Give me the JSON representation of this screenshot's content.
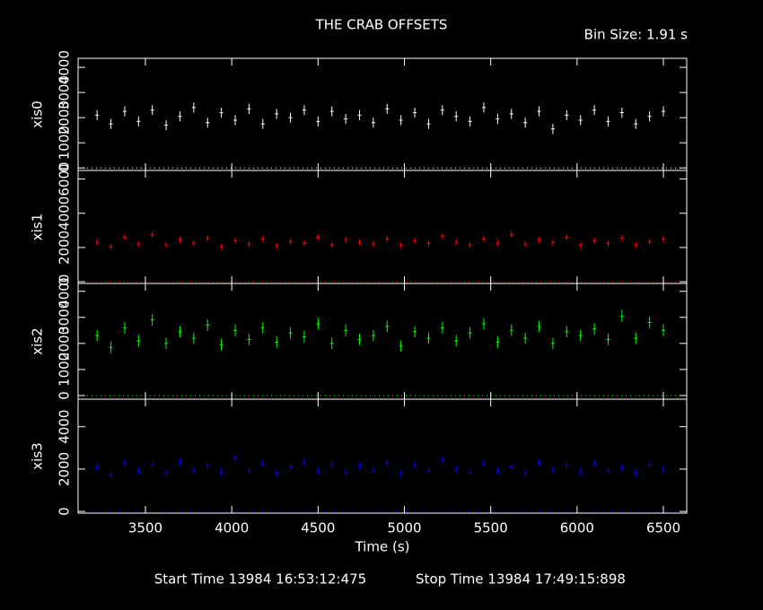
{
  "title": "THE CRAB OFFSETS",
  "bin_size": "Bin Size: 1.91 s",
  "start_time": "Start Time 13984 16:53:12:475",
  "stop_time": "Stop Time 13984 17:49:15:898",
  "chart_data": [
    {
      "type": "errorbar",
      "ylabel": "xis0",
      "color": "#ffffff",
      "xlim": [
        3110,
        6635
      ],
      "ylim": [
        -100,
        4360
      ],
      "yticks": [
        0,
        1000,
        2000,
        3000,
        4000
      ],
      "yerr": 200,
      "x": [
        3220,
        3300,
        3380,
        3460,
        3540,
        3620,
        3700,
        3780,
        3860,
        3940,
        4020,
        4100,
        4180,
        4260,
        4340,
        4420,
        4500,
        4580,
        4660,
        4740,
        4820,
        4900,
        4980,
        5060,
        5140,
        5220,
        5300,
        5380,
        5460,
        5540,
        5620,
        5700,
        5780,
        5860,
        5940,
        6020,
        6100,
        6180,
        6260,
        6340,
        6420,
        6500
      ],
      "values": [
        2100,
        1750,
        2250,
        1850,
        2300,
        1700,
        2050,
        2400,
        1800,
        2200,
        1900,
        2350,
        1750,
        2150,
        2000,
        2300,
        1850,
        2250,
        1950,
        2100,
        1800,
        2350,
        1900,
        2200,
        1750,
        2300,
        2050,
        1850,
        2400,
        1950,
        2150,
        1800,
        2250,
        1550,
        2100,
        1900,
        2300,
        1850,
        2200,
        1750,
        2050,
        2250
      ]
    },
    {
      "type": "errorbar",
      "ylabel": "xis1",
      "color": "#ff0000",
      "xlim": [
        3110,
        6635
      ],
      "ylim": [
        -100,
        6500
      ],
      "yticks": [
        0,
        2000,
        4000,
        6000
      ],
      "yerr": 180,
      "x": [
        3220,
        3300,
        3380,
        3460,
        3540,
        3620,
        3700,
        3780,
        3860,
        3940,
        4020,
        4100,
        4180,
        4260,
        4340,
        4420,
        4500,
        4580,
        4660,
        4740,
        4820,
        4900,
        4980,
        5060,
        5140,
        5220,
        5300,
        5380,
        5460,
        5540,
        5620,
        5700,
        5780,
        5860,
        5940,
        6020,
        6100,
        6180,
        6260,
        6340,
        6420,
        6500
      ],
      "values": [
        2300,
        2050,
        2600,
        2200,
        2750,
        2150,
        2450,
        2250,
        2550,
        2050,
        2400,
        2200,
        2500,
        2100,
        2350,
        2250,
        2600,
        2150,
        2450,
        2300,
        2200,
        2500,
        2150,
        2400,
        2250,
        2650,
        2300,
        2150,
        2500,
        2250,
        2750,
        2200,
        2450,
        2300,
        2600,
        2150,
        2400,
        2250,
        2550,
        2150,
        2350,
        2500
      ]
    },
    {
      "type": "errorbar",
      "ylabel": "xis2",
      "color": "#00ff00",
      "xlim": [
        3110,
        6635
      ],
      "ylim": [
        -140,
        4300
      ],
      "yticks": [
        0,
        1000,
        2000,
        3000,
        4000
      ],
      "yerr": 220,
      "x": [
        3220,
        3300,
        3380,
        3460,
        3540,
        3620,
        3700,
        3780,
        3860,
        3940,
        4020,
        4100,
        4180,
        4260,
        4340,
        4420,
        4500,
        4580,
        4660,
        4740,
        4820,
        4900,
        4980,
        5060,
        5140,
        5220,
        5300,
        5380,
        5460,
        5540,
        5620,
        5700,
        5780,
        5860,
        5940,
        6020,
        6100,
        6180,
        6260,
        6340,
        6420,
        6500
      ],
      "values": [
        2300,
        1850,
        2600,
        2100,
        2900,
        2000,
        2450,
        2200,
        2700,
        1950,
        2500,
        2150,
        2600,
        2050,
        2400,
        2250,
        2750,
        2000,
        2500,
        2150,
        2300,
        2650,
        1900,
        2450,
        2200,
        2600,
        2100,
        2400,
        2750,
        2050,
        2500,
        2200,
        2650,
        2000,
        2450,
        2300,
        2550,
        2150,
        3050,
        2200,
        2800,
        2500
      ]
    },
    {
      "type": "errorbar",
      "ylabel": "xis3",
      "color": "#0000ff",
      "xlim": [
        3110,
        6635
      ],
      "ylim": [
        -80,
        5300
      ],
      "yticks": [
        0,
        2000,
        4000
      ],
      "yerr": 170,
      "xlabel": "Time (s)",
      "xticks": [
        3500,
        4000,
        4500,
        5000,
        5500,
        6000,
        6500
      ],
      "x": [
        3220,
        3300,
        3380,
        3460,
        3540,
        3620,
        3700,
        3780,
        3860,
        3940,
        4020,
        4100,
        4180,
        4260,
        4340,
        4420,
        4500,
        4580,
        4660,
        4740,
        4820,
        4900,
        4980,
        5060,
        5140,
        5220,
        5300,
        5380,
        5460,
        5540,
        5620,
        5700,
        5780,
        5860,
        5940,
        6020,
        6100,
        6180,
        6260,
        6340,
        6420,
        6500
      ],
      "values": [
        2100,
        1750,
        2300,
        1900,
        2200,
        1800,
        2350,
        1950,
        2150,
        1850,
        2500,
        1900,
        2250,
        1800,
        2100,
        2350,
        1900,
        2200,
        1850,
        2150,
        1950,
        2300,
        1800,
        2200,
        1900,
        2450,
        2000,
        1850,
        2250,
        1900,
        2100,
        1800,
        2300,
        1950,
        2150,
        1850,
        2250,
        1900,
        2050,
        1800,
        2200,
        2000
      ]
    }
  ]
}
